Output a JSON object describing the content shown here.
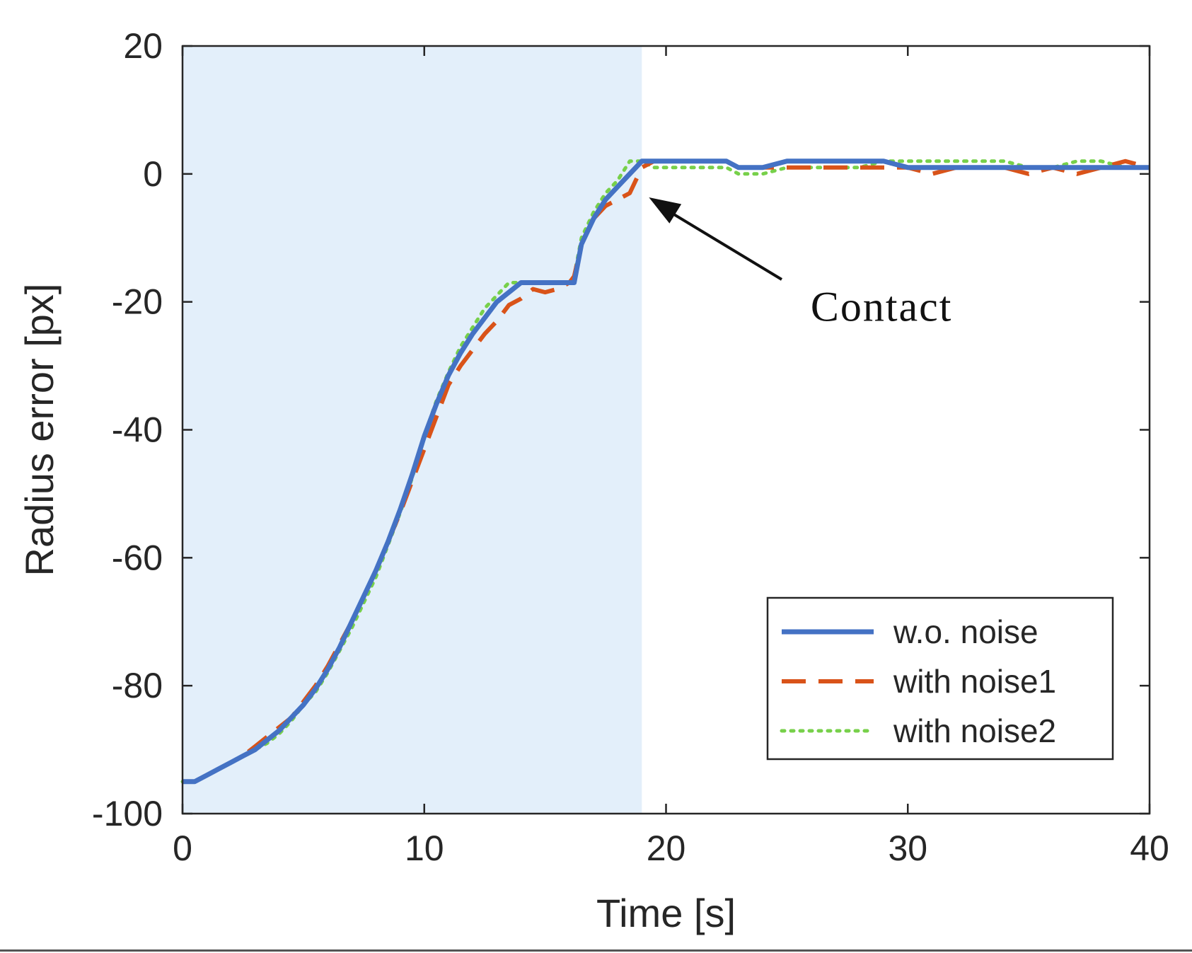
{
  "chart_data": {
    "type": "line",
    "title": "",
    "xlabel": "Time [s]",
    "ylabel": "Radius error [px]",
    "xlim": [
      0,
      40
    ],
    "ylim": [
      -100,
      20
    ],
    "xticks": [
      0,
      10,
      20,
      30,
      40
    ],
    "yticks": [
      -100,
      -80,
      -60,
      -40,
      -20,
      0,
      20
    ],
    "grid": false,
    "legend_position": "bottom-right",
    "shaded_region": {
      "x_start": 0,
      "x_end": 19,
      "color": "#e3effa"
    },
    "annotation": {
      "text": "Contact",
      "points_to": [
        19.0,
        -3.0
      ],
      "text_at": [
        29.5,
        -20
      ]
    },
    "series": [
      {
        "name": "w.o. noise",
        "style": "solid",
        "color": "#4472c4",
        "x": [
          0,
          0.5,
          1,
          1.5,
          2,
          2.5,
          3,
          3.5,
          4,
          4.5,
          5,
          5.5,
          6,
          6.5,
          7,
          7.5,
          8,
          8.5,
          9,
          9.5,
          10,
          10.5,
          11,
          11.5,
          12,
          12.5,
          13,
          13.5,
          14,
          14.5,
          15,
          15.5,
          16,
          16.2,
          16.5,
          17,
          17.5,
          18,
          18.5,
          19,
          19.5,
          20,
          21,
          22,
          22.5,
          23,
          24,
          25,
          26,
          27,
          28,
          29,
          30,
          31,
          32,
          33,
          34,
          35,
          36,
          37,
          38,
          39,
          40
        ],
        "y": [
          -95,
          -95,
          -94,
          -93,
          -92,
          -91,
          -90,
          -88.5,
          -87,
          -85,
          -83,
          -80.5,
          -77.5,
          -74,
          -70,
          -66,
          -62,
          -57.5,
          -52.5,
          -47,
          -41,
          -36,
          -31.5,
          -28,
          -25,
          -22.5,
          -20,
          -18.5,
          -17,
          -17,
          -17,
          -17,
          -17,
          -17,
          -11,
          -7,
          -4,
          -2,
          0,
          2,
          2,
          2,
          2,
          2,
          2,
          1,
          1,
          2,
          2,
          2,
          2,
          2,
          1,
          1,
          1,
          1,
          1,
          1,
          1,
          1,
          1,
          1,
          1
        ]
      },
      {
        "name": "with noise1",
        "style": "dashed",
        "color": "#d95319",
        "x": [
          0,
          0.5,
          1,
          1.5,
          2,
          2.5,
          3,
          3.5,
          4,
          4.5,
          5,
          5.5,
          6,
          6.5,
          7,
          7.5,
          8,
          8.5,
          9,
          9.5,
          10,
          10.5,
          11,
          11.5,
          12,
          12.5,
          13,
          13.5,
          14,
          14.5,
          15,
          15.5,
          16,
          16.2,
          16.5,
          17,
          17.5,
          18,
          18.5,
          19,
          19.5,
          20,
          21,
          22,
          22.5,
          23,
          24,
          25,
          26,
          27,
          28,
          29,
          30,
          31,
          32,
          33,
          34,
          35,
          36,
          37,
          38,
          39,
          40
        ],
        "y": [
          -95,
          -95,
          -94,
          -93,
          -92,
          -91,
          -89.5,
          -88,
          -86.5,
          -85,
          -82.5,
          -80,
          -77,
          -73.5,
          -70,
          -66,
          -62,
          -57.5,
          -53,
          -48,
          -43,
          -38,
          -33,
          -30,
          -27.5,
          -25,
          -23,
          -20.5,
          -19.5,
          -18,
          -18.5,
          -18,
          -17,
          -16,
          -11,
          -7,
          -5,
          -4,
          -3,
          1,
          2,
          2,
          2,
          2,
          2,
          1,
          1,
          1,
          1,
          1,
          1,
          1,
          1,
          0,
          1,
          1,
          1,
          0,
          1,
          0,
          1,
          2,
          1
        ]
      },
      {
        "name": "with noise2",
        "style": "dotted",
        "color": "#77d04a",
        "x": [
          0,
          0.5,
          1,
          1.5,
          2,
          2.5,
          3,
          3.5,
          4,
          4.5,
          5,
          5.5,
          6,
          6.5,
          7,
          7.5,
          8,
          8.5,
          9,
          9.5,
          10,
          10.5,
          11,
          11.5,
          12,
          12.5,
          13,
          13.5,
          14,
          14.5,
          15,
          15.5,
          16,
          16.2,
          16.5,
          17,
          17.5,
          18,
          18.5,
          19,
          19.5,
          20,
          21,
          22,
          22.5,
          23,
          24,
          25,
          26,
          27,
          28,
          29,
          30,
          31,
          32,
          33,
          34,
          35,
          36,
          37,
          38,
          39,
          40
        ],
        "y": [
          -95,
          -95,
          -94,
          -93,
          -92,
          -91,
          -90,
          -89,
          -87.5,
          -85.5,
          -83,
          -81,
          -78,
          -74.5,
          -71,
          -67,
          -63,
          -58,
          -53,
          -47.5,
          -41,
          -35.5,
          -31,
          -27,
          -24,
          -21,
          -19,
          -17,
          -17,
          -17,
          -17,
          -17,
          -17,
          -16,
          -10,
          -6,
          -3,
          -1,
          2,
          2,
          1,
          1,
          1,
          1,
          1,
          0,
          0,
          1,
          1,
          1,
          1,
          2,
          2,
          2,
          2,
          2,
          2,
          1,
          1,
          2,
          2,
          1,
          1
        ]
      }
    ]
  }
}
